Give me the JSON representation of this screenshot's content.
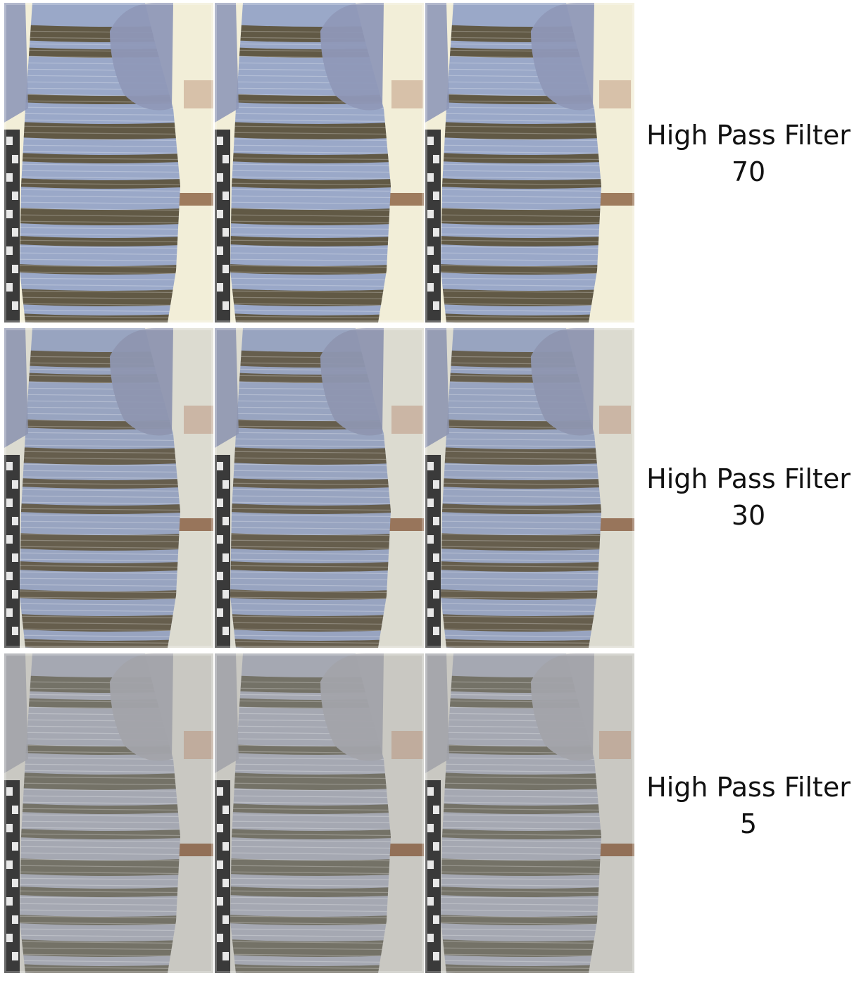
{
  "rows": [
    {
      "label_line1": "High Pass Filter",
      "label_line2": "70",
      "colors": {
        "bg": "#f2eed8",
        "dress_light": "#9aa8c8",
        "dress_dark": "#5b5036",
        "jacket": "#8f98b8"
      }
    },
    {
      "label_line1": "High Pass Filter",
      "label_line2": "30",
      "colors": {
        "bg": "#dcdbd0",
        "dress_light": "#98a4c0",
        "dress_dark": "#615740",
        "jacket": "#8e96b0"
      }
    },
    {
      "label_line1": "High Pass Filter",
      "label_line2": "5",
      "colors": {
        "bg": "#c9c8c2",
        "dress_light": "#a5a8b2",
        "dress_dark": "#6f6b5e",
        "jacket": "#a2a3aa"
      }
    }
  ]
}
